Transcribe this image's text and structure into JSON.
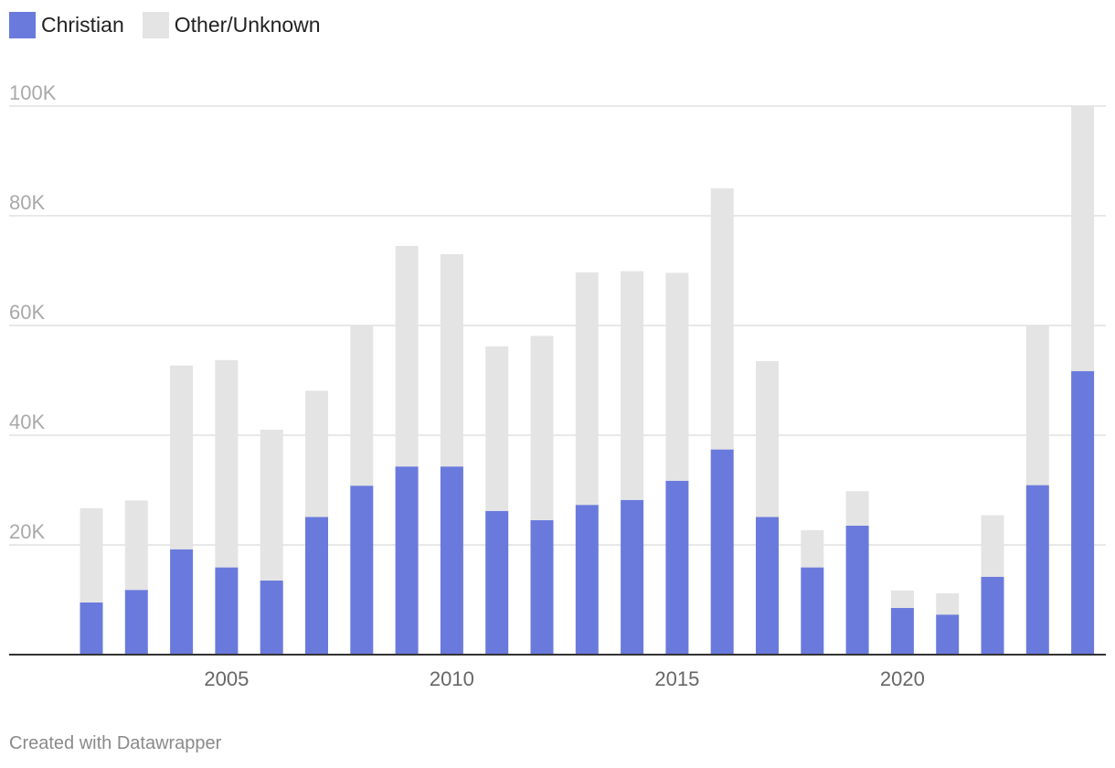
{
  "legend": {
    "items": [
      {
        "label": "Christian",
        "color": "#6a7adc"
      },
      {
        "label": "Other/Unknown",
        "color": "#e4e4e4"
      }
    ]
  },
  "footer": {
    "text": "Created with Datawrapper"
  },
  "chart_data": {
    "type": "bar",
    "stacked": true,
    "categories": [
      2002,
      2003,
      2004,
      2005,
      2006,
      2007,
      2008,
      2009,
      2010,
      2011,
      2012,
      2013,
      2014,
      2015,
      2016,
      2017,
      2018,
      2019,
      2020,
      2021,
      2022,
      2023,
      2024
    ],
    "series": [
      {
        "name": "Christian",
        "color": "#6a7adc",
        "values": [
          9500,
          11800,
          19200,
          15900,
          13500,
          25100,
          30800,
          34300,
          34300,
          26200,
          24500,
          27300,
          28200,
          31700,
          37400,
          25100,
          15900,
          23500,
          8500,
          7300,
          14200,
          30900,
          51700
        ]
      },
      {
        "name": "Other/Unknown",
        "color": "#e4e4e4",
        "values": [
          17200,
          16300,
          33500,
          37800,
          27500,
          23000,
          29200,
          40200,
          38700,
          30000,
          33600,
          42400,
          41700,
          37900,
          47600,
          28400,
          6800,
          6300,
          3200,
          3900,
          11200,
          29100,
          48300
        ]
      }
    ],
    "ylim": [
      0,
      100000
    ],
    "yticks": [
      {
        "value": 20000,
        "label": "20K"
      },
      {
        "value": 40000,
        "label": "40K"
      },
      {
        "value": 60000,
        "label": "60K"
      },
      {
        "value": 80000,
        "label": "80K"
      },
      {
        "value": 100000,
        "label": "100K"
      }
    ],
    "xticks": [
      2005,
      2010,
      2015,
      2020
    ],
    "xlabel": "",
    "ylabel": "",
    "grid": true,
    "legend_position": "top-left"
  }
}
